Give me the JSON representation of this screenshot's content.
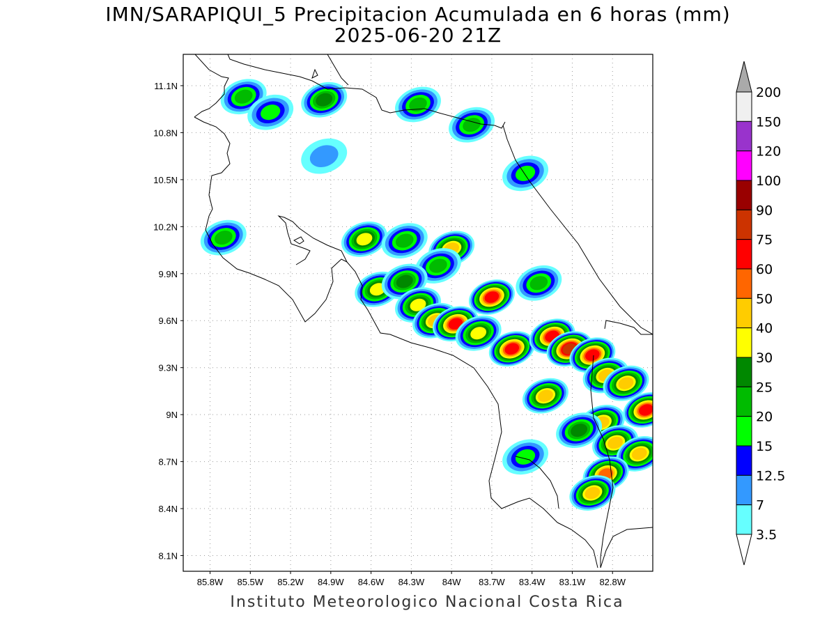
{
  "title_line1": "IMN/SARAPIQUI_5 Precipitacion Acumulada en 6 horas (mm)",
  "title_line2": "2025-06-20 21Z",
  "footer": "Instituto Meteorologico Nacional Costa Rica",
  "lat_ticks": [
    "11.1N",
    "10.8N",
    "10.5N",
    "10.2N",
    "9.9N",
    "9.6N",
    "9.3N",
    "9N",
    "8.7N",
    "8.4N",
    "8.1N"
  ],
  "lon_ticks": [
    "85.8W",
    "85.5W",
    "85.2W",
    "84.9W",
    "84.6W",
    "84.3W",
    "84W",
    "83.7W",
    "83.4W",
    "83.1W",
    "82.8W"
  ],
  "map_extent": {
    "lon_min": -86.0,
    "lon_max": -82.5,
    "lat_min": 8.0,
    "lat_max": 11.3
  },
  "legend": {
    "levels": [
      "200",
      "150",
      "120",
      "100",
      "90",
      "75",
      "60",
      "50",
      "40",
      "30",
      "25",
      "20",
      "15",
      "12.5",
      "7",
      "3.5"
    ],
    "colors": [
      "#f0f0f0",
      "#9933cc",
      "#ff00ff",
      "#990000",
      "#cc3300",
      "#ff0000",
      "#ff6600",
      "#ffcc00",
      "#ffff00",
      "#008800",
      "#00bb00",
      "#00ff00",
      "#0000ff",
      "#3399ff",
      "#66ffff"
    ],
    "over_color": "#aaaaaa",
    "under_color": "#ffffff"
  },
  "chart_data": {
    "type": "heatmap",
    "variable": "Precipitacion Acumulada en 6 horas (mm)",
    "ylabel": "",
    "xlabel": "",
    "xlim": [
      -86.0,
      -82.5
    ],
    "ylim": [
      8.0,
      11.3
    ],
    "grid": true,
    "levels": [
      3.5,
      7,
      12.5,
      15,
      20,
      25,
      30,
      40,
      50,
      60,
      75,
      90,
      100,
      120,
      150,
      200
    ],
    "cells": [
      {
        "lon": -85.55,
        "lat": 11.03,
        "value": 20
      },
      {
        "lon": -85.35,
        "lat": 10.93,
        "value": 15
      },
      {
        "lon": -84.95,
        "lat": 11.01,
        "value": 25
      },
      {
        "lon": -84.25,
        "lat": 10.98,
        "value": 20
      },
      {
        "lon": -83.85,
        "lat": 10.85,
        "value": 20
      },
      {
        "lon": -84.95,
        "lat": 10.65,
        "value": 7
      },
      {
        "lon": -83.45,
        "lat": 10.54,
        "value": 15
      },
      {
        "lon": -85.7,
        "lat": 10.13,
        "value": 20
      },
      {
        "lon": -84.65,
        "lat": 10.12,
        "value": 30
      },
      {
        "lon": -84.35,
        "lat": 10.11,
        "value": 20
      },
      {
        "lon": -84.0,
        "lat": 10.06,
        "value": 40
      },
      {
        "lon": -84.1,
        "lat": 9.95,
        "value": 20
      },
      {
        "lon": -84.55,
        "lat": 9.8,
        "value": 30
      },
      {
        "lon": -84.35,
        "lat": 9.85,
        "value": 25
      },
      {
        "lon": -83.35,
        "lat": 9.84,
        "value": 20
      },
      {
        "lon": -83.7,
        "lat": 9.75,
        "value": 60
      },
      {
        "lon": -84.25,
        "lat": 9.7,
        "value": 30
      },
      {
        "lon": -84.12,
        "lat": 9.6,
        "value": 40
      },
      {
        "lon": -83.97,
        "lat": 9.58,
        "value": 60
      },
      {
        "lon": -83.8,
        "lat": 9.52,
        "value": 30
      },
      {
        "lon": -83.55,
        "lat": 9.42,
        "value": 60
      },
      {
        "lon": -83.25,
        "lat": 9.5,
        "value": 60
      },
      {
        "lon": -83.12,
        "lat": 9.42,
        "value": 75
      },
      {
        "lon": -82.95,
        "lat": 9.38,
        "value": 60
      },
      {
        "lon": -82.85,
        "lat": 9.25,
        "value": 40
      },
      {
        "lon": -82.7,
        "lat": 9.2,
        "value": 40
      },
      {
        "lon": -82.55,
        "lat": 9.03,
        "value": 60
      },
      {
        "lon": -83.3,
        "lat": 9.12,
        "value": 40
      },
      {
        "lon": -82.88,
        "lat": 8.95,
        "value": 40
      },
      {
        "lon": -82.78,
        "lat": 8.82,
        "value": 40
      },
      {
        "lon": -82.6,
        "lat": 8.75,
        "value": 40
      },
      {
        "lon": -83.05,
        "lat": 8.9,
        "value": 25
      },
      {
        "lon": -82.85,
        "lat": 8.62,
        "value": 50
      },
      {
        "lon": -82.95,
        "lat": 8.5,
        "value": 40
      },
      {
        "lon": -83.45,
        "lat": 8.73,
        "value": 15
      }
    ]
  }
}
